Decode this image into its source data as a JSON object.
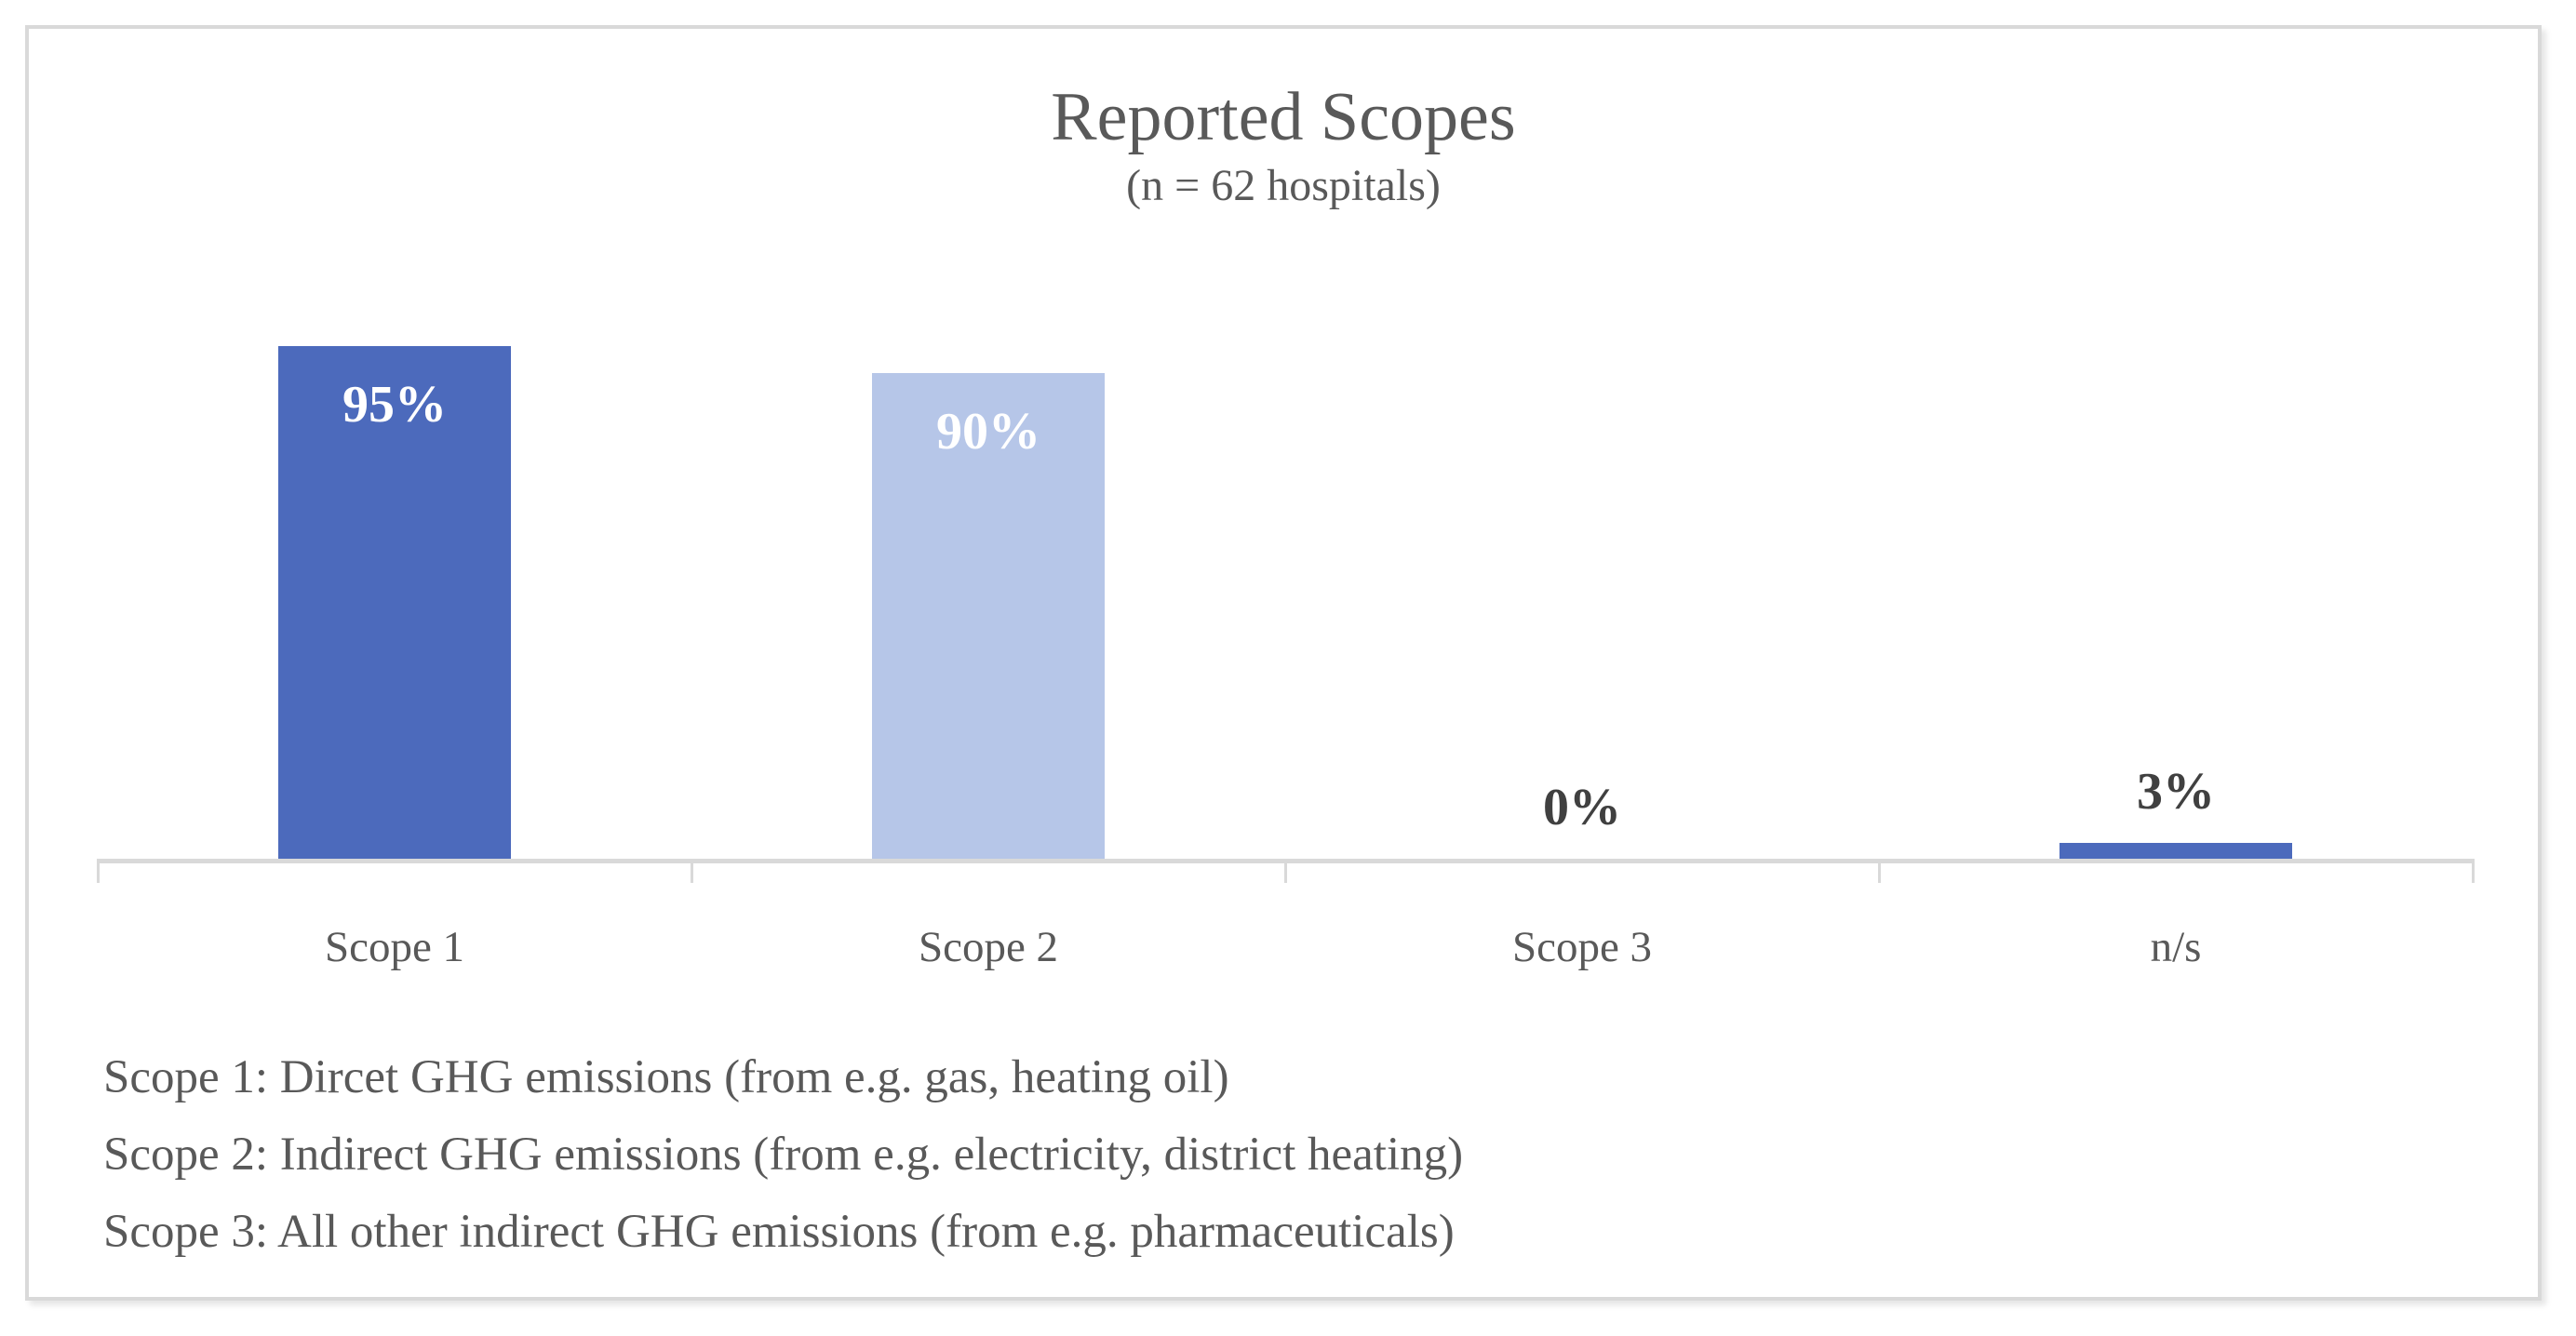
{
  "chart_data": {
    "type": "bar",
    "title": "Reported Scopes",
    "subtitle": "(n = 62 hospitals)",
    "categories": [
      "Scope 1",
      "Scope 2",
      "Scope 3",
      "n/s"
    ],
    "values": [
      95,
      90,
      0,
      3
    ],
    "value_labels": [
      "95%",
      "90%",
      "0%",
      "3%"
    ],
    "bar_colors": [
      "#4c6abc",
      "#b6c6e8",
      "#4c6abc",
      "#4c6abc"
    ],
    "label_inside": [
      true,
      true,
      false,
      false
    ],
    "xlabel": "",
    "ylabel": "",
    "ylim": [
      0,
      100
    ],
    "grid": false,
    "legend": false
  },
  "footnotes": [
    "Scope 1: Dircet GHG emissions (from e.g. gas, heating oil)",
    "Scope 2: Indirect GHG emissions (from e.g. electricity, district heating)",
    "Scope 3: All other indirect GHG emissions (from e.g. pharmaceuticals)"
  ],
  "colors": {
    "bar_primary": "#4c6abc",
    "bar_secondary": "#b6c6e8",
    "axis_line": "#d9d9d9",
    "text_muted": "#595959",
    "label_dark": "#404040",
    "label_light": "#ffffff"
  }
}
